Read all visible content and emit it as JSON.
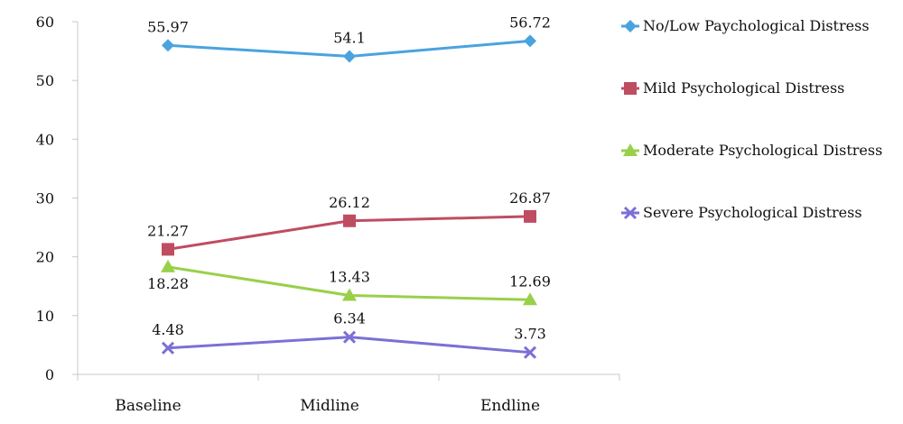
{
  "chart_data": {
    "type": "line",
    "title": "",
    "xlabel": "",
    "ylabel": "",
    "categories": [
      "Baseline",
      "Midline",
      "Endline"
    ],
    "ylim": [
      0,
      60
    ],
    "yticks": [
      0,
      10,
      20,
      30,
      40,
      50,
      60
    ],
    "grid": false,
    "legend_position": "right",
    "series": [
      {
        "name": "No/Low Paychological Distress",
        "values": [
          55.97,
          54.1,
          56.72
        ],
        "data_labels": [
          "55.97",
          "54.1",
          "56.72"
        ],
        "color": "#4aa3df",
        "marker": "diamond"
      },
      {
        "name": "Mild Psychological Distress",
        "values": [
          21.27,
          26.12,
          26.87
        ],
        "data_labels": [
          "21.27",
          "26.12",
          "26.87"
        ],
        "color": "#bf4d62",
        "marker": "square"
      },
      {
        "name": "Moderate Psychological Distress",
        "values": [
          18.28,
          13.43,
          12.69
        ],
        "data_labels": [
          "18.28",
          "13.43",
          "12.69"
        ],
        "color": "#99d04a",
        "marker": "triangle"
      },
      {
        "name": "Severe Psychological Distress",
        "values": [
          4.48,
          6.34,
          3.73
        ],
        "data_labels": [
          "4.48",
          "6.34",
          "3.73"
        ],
        "color": "#7b70d6",
        "marker": "x"
      }
    ]
  }
}
